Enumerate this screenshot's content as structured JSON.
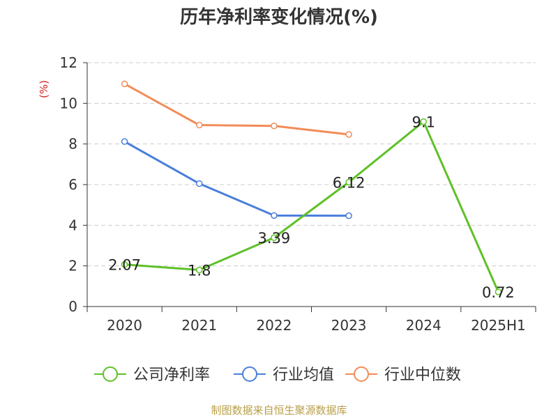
{
  "chart_data": {
    "type": "line",
    "title": "历年净利率变化情况(%)",
    "ylabel": "(%)",
    "xlabel": "",
    "categories": [
      "2020",
      "2021",
      "2022",
      "2023",
      "2024",
      "2025H1"
    ],
    "ylim": [
      0,
      12
    ],
    "yticks": [
      0,
      2,
      4,
      6,
      8,
      10,
      12
    ],
    "grid": true,
    "legend_position": "bottom",
    "series": [
      {
        "name": "公司净利率",
        "color": "#5ec128",
        "values": [
          2.07,
          1.8,
          3.39,
          6.12,
          9.1,
          0.72
        ],
        "labels": [
          "2.07",
          "1.8",
          "3.39",
          "6.12",
          "9.1",
          "0.72"
        ]
      },
      {
        "name": "行业均值",
        "color": "#4a7fdb",
        "values": [
          8.12,
          6.05,
          4.48,
          4.47,
          null,
          null
        ]
      },
      {
        "name": "行业中位数",
        "color": "#f28c59",
        "values": [
          10.96,
          8.93,
          8.89,
          8.47,
          null,
          null
        ]
      }
    ]
  },
  "source": "制图数据来自恒生聚源数据库"
}
